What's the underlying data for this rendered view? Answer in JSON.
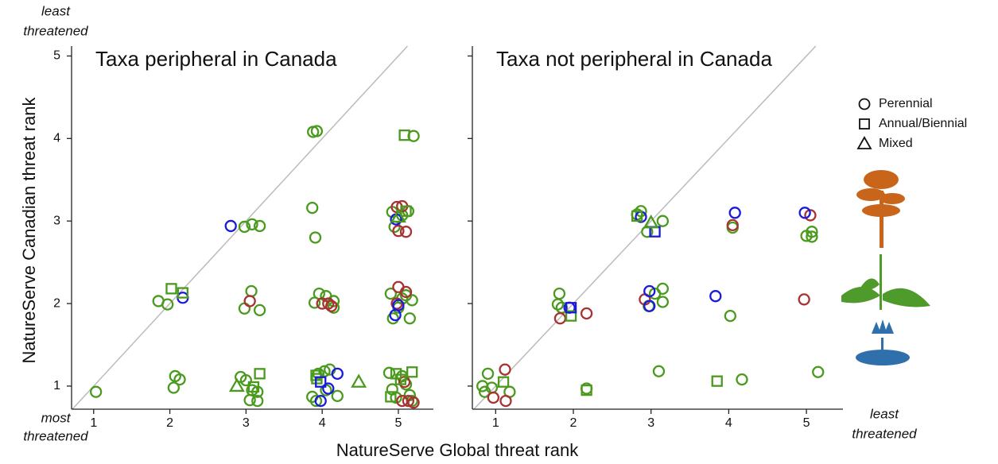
{
  "chart_data": [
    {
      "type": "scatter",
      "title": "Taxa peripheral in Canada",
      "xlim": [
        0.71,
        5.46
      ],
      "ylim": [
        0.72,
        5.12
      ],
      "xticks": [
        1,
        2,
        3,
        4,
        5
      ],
      "yticks": [
        1,
        2,
        3,
        4,
        5
      ],
      "ytick_labels": true,
      "diagonal": true,
      "series": [
        {
          "marker": "circle",
          "color": "#4a9a1e",
          "x": [
            1.03,
            1.85,
            1.97,
            2.07,
            2.13,
            2.05,
            2.93,
            3.0,
            3.08,
            3.15,
            3.05,
            3.15,
            2.98,
            3.08,
            3.18,
            2.98,
            3.07,
            3.18,
            3.88,
            3.93,
            3.87,
            3.91,
            3.9,
            3.96,
            4.05,
            4.15,
            4.15,
            3.87,
            3.92,
            3.95,
            4.03,
            4.1,
            4.2,
            4.05,
            4.92,
            4.95,
            5.05,
            5.13,
            4.9,
            4.93,
            5.05,
            5.15,
            5.18,
            4.88,
            4.92,
            4.97,
            5.05,
            5.1,
            5.15,
            5.18,
            5.2,
            5.0,
            5.1
          ],
          "y": [
            0.93,
            2.03,
            1.99,
            1.12,
            1.08,
            0.98,
            1.11,
            1.07,
            0.95,
            0.93,
            0.83,
            0.82,
            2.93,
            2.96,
            2.94,
            1.94,
            2.15,
            1.92,
            4.08,
            4.09,
            3.16,
            2.8,
            2.01,
            2.12,
            2.09,
            2.03,
            1.95,
            0.87,
            0.82,
            1.15,
            1.18,
            1.2,
            0.88,
            0.95,
            3.11,
            2.93,
            3.07,
            3.12,
            2.12,
            1.82,
            2.06,
            1.82,
            2.04,
            1.16,
            0.96,
            0.86,
            1.12,
            1.02,
            0.89,
            0.82,
            4.03,
            1.95,
            2.1
          ]
        },
        {
          "marker": "circle",
          "color": "#a83232",
          "x": [
            3.05,
            4.0,
            4.08,
            4.12,
            4.98,
            5.05,
            5.0,
            5.1,
            5.0,
            5.1,
            4.98,
            5.05,
            5.13,
            5.2,
            5.08
          ],
          "y": [
            2.03,
            2.0,
            2.0,
            1.97,
            3.17,
            3.18,
            2.88,
            2.87,
            2.2,
            2.14,
            2.0,
            0.82,
            0.82,
            0.8,
            1.05
          ]
        },
        {
          "marker": "circle",
          "color": "#1a1adc",
          "x": [
            2.8,
            2.17,
            4.2,
            4.08,
            3.98,
            4.96,
            4.97,
            5.0
          ],
          "y": [
            2.94,
            2.07,
            1.15,
            0.97,
            0.82,
            1.86,
            3.02,
            1.98
          ]
        },
        {
          "marker": "square",
          "color": "#4a9a1e",
          "x": [
            2.02,
            2.17,
            3.18,
            3.1,
            3.92,
            3.93,
            5.08,
            5.1,
            4.97,
            5.03,
            5.18,
            4.9
          ],
          "y": [
            2.18,
            2.13,
            1.15,
            0.99,
            1.13,
            1.09,
            4.04,
            3.12,
            1.15,
            1.08,
            1.17,
            0.87
          ]
        },
        {
          "marker": "square",
          "color": "#1a1adc",
          "x": [
            3.98
          ],
          "y": [
            1.05
          ]
        },
        {
          "marker": "triangle",
          "color": "#4a9a1e",
          "x": [
            2.88,
            4.48,
            5.0
          ],
          "y": [
            1.0,
            1.05,
            3.05
          ]
        }
      ]
    },
    {
      "type": "scatter",
      "title": "Taxa not peripheral in Canada",
      "xlim": [
        0.7,
        5.47
      ],
      "ylim": [
        0.72,
        5.12
      ],
      "xticks": [
        1,
        2,
        3,
        4,
        5
      ],
      "yticks": [
        1,
        2,
        3,
        4,
        5
      ],
      "ytick_labels": false,
      "diagonal": true,
      "series": [
        {
          "marker": "circle",
          "color": "#4a9a1e",
          "x": [
            0.83,
            0.86,
            0.9,
            0.95,
            1.18,
            1.82,
            1.8,
            1.85,
            2.82,
            2.95,
            3.15,
            2.97,
            3.05,
            3.15,
            3.15,
            3.1,
            2.87,
            4.05,
            4.02,
            4.17,
            5.0,
            5.07,
            5.07,
            5.15,
            2.17
          ],
          "y": [
            1.0,
            0.93,
            1.15,
            0.98,
            0.93,
            2.12,
            1.99,
            1.95,
            3.08,
            2.87,
            3.0,
            1.97,
            2.12,
            2.18,
            2.02,
            1.18,
            3.12,
            2.92,
            1.85,
            1.08,
            2.82,
            2.87,
            2.81,
            1.17,
            0.97
          ]
        },
        {
          "marker": "circle",
          "color": "#a83232",
          "x": [
            0.97,
            1.12,
            1.13,
            1.83,
            2.17,
            2.92,
            4.05,
            4.97,
            5.05
          ],
          "y": [
            0.86,
            1.2,
            0.82,
            1.82,
            1.88,
            2.05,
            2.95,
            2.05,
            3.07
          ]
        },
        {
          "marker": "circle",
          "color": "#1a1adc",
          "x": [
            2.87,
            2.98,
            2.98,
            3.83,
            4.08,
            4.98,
            1.95
          ],
          "y": [
            3.05,
            2.15,
            1.97,
            2.09,
            3.1,
            3.1,
            1.95
          ]
        },
        {
          "marker": "square",
          "color": "#4a9a1e",
          "x": [
            1.1,
            1.97,
            2.17,
            3.85,
            2.82
          ],
          "y": [
            1.05,
            1.85,
            0.95,
            1.06,
            3.06
          ]
        },
        {
          "marker": "square",
          "color": "#1a1adc",
          "x": [
            1.97,
            3.05
          ],
          "y": [
            1.95,
            2.87
          ]
        },
        {
          "marker": "triangle",
          "color": "#4a9a1e",
          "x": [
            3.0
          ],
          "y": [
            2.98
          ]
        }
      ]
    }
  ],
  "y_label": "NatureServe Canadian threat rank",
  "x_label": "NatureServe Global threat rank",
  "annotations": {
    "top_left": [
      "least",
      "threatened"
    ],
    "bottom_left": [
      "most",
      "threatened"
    ],
    "bottom_right": [
      "least",
      "threatened"
    ]
  },
  "legend": [
    {
      "label": "Perennial",
      "marker": "circle"
    },
    {
      "label": "Annual/Biennial",
      "marker": "square"
    },
    {
      "label": "Mixed",
      "marker": "triangle"
    }
  ]
}
